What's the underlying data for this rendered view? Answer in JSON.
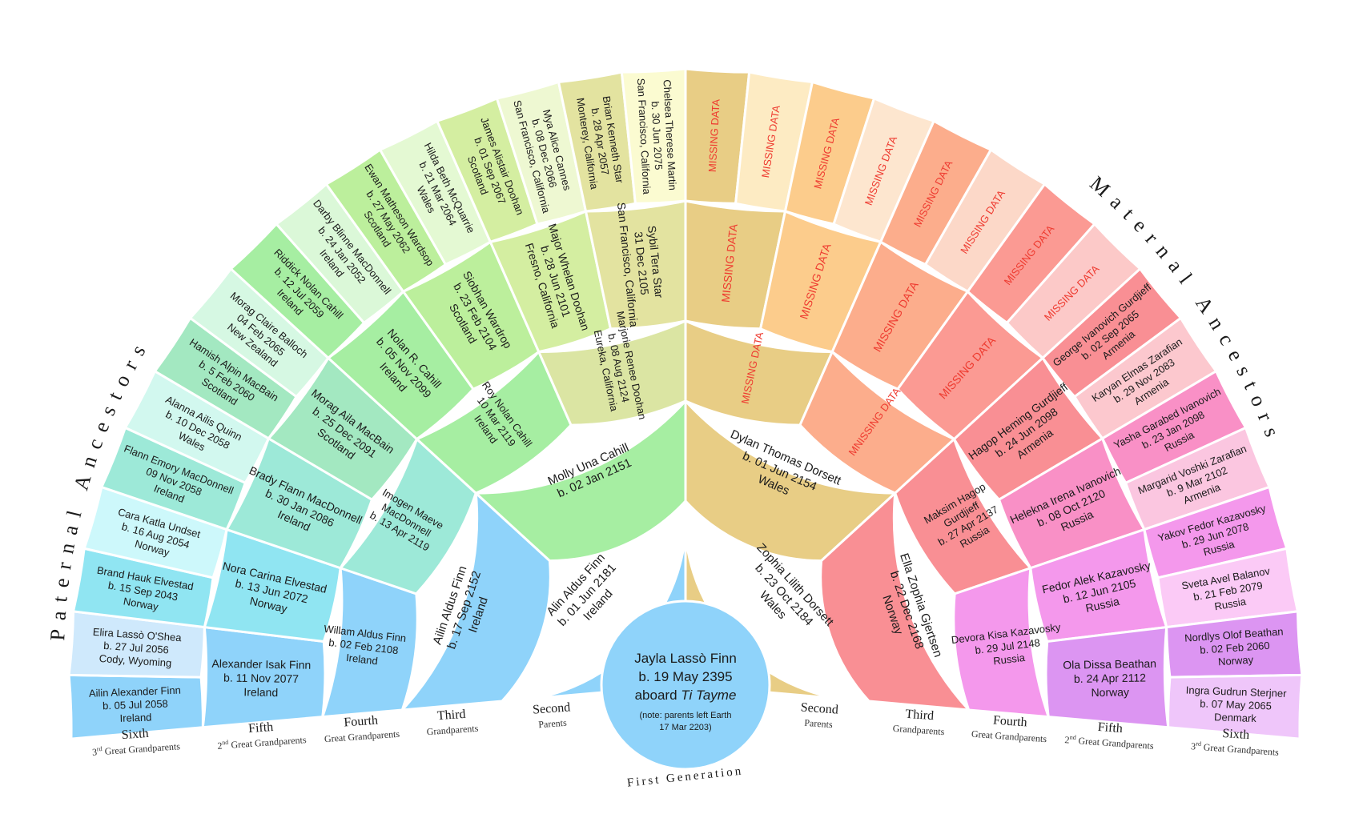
{
  "headings": {
    "paternal": "Paternal Ancestors",
    "maternal": "Maternal Ancestors",
    "center_caption": "First Generation"
  },
  "center": {
    "name": "Jayla Lassò Finn",
    "born": "b. 19 May 2395",
    "aboard_prefix": "aboard",
    "ship": "Ti Tayme",
    "note1": "(note: parents left Earth",
    "note2": "17 Mar 2203)"
  },
  "gen_labels": {
    "left": [
      {
        "title": "Second",
        "sub": "Parents"
      },
      {
        "title": "Third",
        "sub": "Grandparents"
      },
      {
        "title": "Fourth",
        "sub": "Great Grandparents"
      },
      {
        "title": "Fifth",
        "sup": "nd",
        "prefix": "2",
        "sub": "Great Grandparents"
      },
      {
        "title": "Sixth",
        "sup": "rd",
        "prefix": "3",
        "sub": "Great Grandparents"
      }
    ],
    "right": [
      {
        "title": "Second",
        "sub": "Parents"
      },
      {
        "title": "Third",
        "sub": "Grandparents"
      },
      {
        "title": "Fourth",
        "sub": "Great Grandparents"
      },
      {
        "title": "Fifth",
        "sup": "nd",
        "prefix": "2",
        "sub": "Great Grandparents"
      },
      {
        "title": "Sixth",
        "sup": "rd",
        "prefix": "3",
        "sub": "Great Grandparents"
      }
    ]
  },
  "rings": [
    {
      "level": 2,
      "people": [
        {
          "lines": [
            "Alin Aldus Finn",
            "b. 01 Jun 2181",
            "Ireland"
          ],
          "color": "#8fd3fa"
        },
        {
          "lines": [
            "Zophia Lilith Dorsett",
            "b. 23 Oct 2184",
            "Wales"
          ],
          "color": "#e8cd85"
        }
      ]
    },
    {
      "level": 3,
      "people": [
        {
          "lines": [
            "Ailin Aldus Finn",
            "b. 17 Sep 2152",
            "Ireland"
          ],
          "color": "#8fd3fa"
        },
        {
          "lines": [
            "Molly Una Cahill",
            "b. 02 Jan 2151"
          ],
          "color": "#a6eea2"
        },
        {
          "lines": [
            "Dylan Thomas Dorsett",
            "b. 01 Jun 2154",
            "Wales"
          ],
          "color": "#e8cd85"
        },
        {
          "lines": [
            "Ella Zophia Gjertsen",
            "b. 22 Dec 2168",
            "Norway"
          ],
          "color": "#f98f94"
        }
      ]
    },
    {
      "level": 4,
      "people": [
        {
          "lines": [
            "Willam Aldus Finn",
            "b. 02 Feb 2108",
            "Ireland"
          ],
          "color": "#8fd3fa"
        },
        {
          "lines": [
            "Imogen Maeve",
            "MacDonnell",
            "b. 13 Apr 2119"
          ],
          "color": "#9de9d8"
        },
        {
          "lines": [
            "Roy Nolan Cahill",
            "10 Mar 2119",
            "Ireland"
          ],
          "color": "#a6eea2"
        },
        {
          "lines": [
            "Marjorie Renee Doohan",
            "b. 08 Aug 2124",
            "Eureka, California"
          ],
          "color": "#dbe5a3"
        },
        {
          "lines": [
            "MISSING DATA"
          ],
          "color": "#e8cd85",
          "missing": true
        },
        {
          "lines": [
            "MNISSING DATA"
          ],
          "color": "#fcad8c",
          "missing": true
        },
        {
          "lines": [
            "Maksim Hagop",
            "Gurdjieff",
            "b. 27 Apr 2137",
            "Russia"
          ],
          "color": "#f98f94"
        },
        {
          "lines": [
            "Devora Kisa Kazavosky",
            "b. 29 Jul 2148",
            "Russia"
          ],
          "color": "#f498ec"
        }
      ]
    },
    {
      "level": 5,
      "people": [
        {
          "lines": [
            "Alexander Isak Finn",
            "b. 11 Nov 2077",
            "Ireland"
          ],
          "color": "#8fd3fa"
        },
        {
          "lines": [
            "Nora Carina Elvestad",
            "b. 13 Jun 2072",
            "Norway"
          ],
          "color": "#90e5f2"
        },
        {
          "lines": [
            "Brady Flann MacDonnell",
            "b. 30 Jan 2086",
            "Ireland"
          ],
          "color": "#9de9d8"
        },
        {
          "lines": [
            "Morag Aila MacBain",
            "b. 25 Dec 2091",
            "Scotland"
          ],
          "color": "#a3e8c1"
        },
        {
          "lines": [
            "Nolan R. Cahill",
            "b. 05 Nov 2099",
            "Ireland"
          ],
          "color": "#a6eea2"
        },
        {
          "lines": [
            "Siobhan Wardrop",
            "b. 23 Feb 2104",
            "Scotland"
          ],
          "color": "#bcef9c"
        },
        {
          "lines": [
            "Major Whelan Doohan",
            "b. 28 Jun 2101",
            "Fresno, California"
          ],
          "color": "#d4eea1"
        },
        {
          "lines": [
            "Sybil Tera Star",
            "31 Dec 2105",
            "San Francisco, California"
          ],
          "color": "#e3e3a0"
        },
        {
          "lines": [
            "MISSING DATA"
          ],
          "color": "#e8cd85",
          "missing": true
        },
        {
          "lines": [
            "MISSING DATA"
          ],
          "color": "#fccc8c",
          "missing": true
        },
        {
          "lines": [
            "MISSING DATA"
          ],
          "color": "#fcad8c",
          "missing": true
        },
        {
          "lines": [
            "MISSING DATA"
          ],
          "color": "#fb9a93",
          "missing": true
        },
        {
          "lines": [
            "Hagop Heming Gurdjieff",
            "b. 24 Jun 2098",
            "Armenia"
          ],
          "color": "#f98f94"
        },
        {
          "lines": [
            "Helekna Irena Ivanovich",
            "b. 08 Oct 2120",
            "Russia"
          ],
          "color": "#f990c6"
        },
        {
          "lines": [
            "Fedor Alek Kazavosky",
            "b. 12 Jun 2105",
            "Russia"
          ],
          "color": "#f498ec"
        },
        {
          "lines": [
            "Ola Dissa Beathan",
            "b. 24 Apr 2112",
            "Norway"
          ],
          "color": "#dc95f2"
        }
      ]
    },
    {
      "level": 6,
      "people": [
        {
          "lines": [
            "Ailin Alexander Finn",
            "b. 05 Jul 2058",
            "Ireland"
          ],
          "color": "#8fd3fa"
        },
        {
          "lines": [
            "Elira Lassò O'Shea",
            "b. 27 Jul 2056",
            "Cody, Wyoming"
          ],
          "color": "#cfe9fc"
        },
        {
          "lines": [
            "Brand Hauk Elvestad",
            "b. 15 Sep 2043",
            "Norway"
          ],
          "color": "#90e5f2"
        },
        {
          "lines": [
            "Cara Katla Undset",
            "b. 16 Aug 2054",
            "Norway"
          ],
          "color": "#cdf8fb"
        },
        {
          "lines": [
            "Flann Emory MacDonnell",
            "09 Nov 2058",
            "Ireland"
          ],
          "color": "#9de9d8"
        },
        {
          "lines": [
            "Alanna Ailis Quinn",
            "b. 10 Dec 2058",
            "Wales"
          ],
          "color": "#d2f8ef"
        },
        {
          "lines": [
            "Hamish Alpin MacBain",
            "b. 5 Feb 2060",
            "Scotland"
          ],
          "color": "#a3e8c1"
        },
        {
          "lines": [
            "Morag Claire Balloch",
            "04 Feb 2065",
            "New Zealand"
          ],
          "color": "#d6f8e3"
        },
        {
          "lines": [
            "Riddick Nolan Cahill",
            "b. 12 Jul 2059",
            "Ireland"
          ],
          "color": "#a6eea2"
        },
        {
          "lines": [
            "Darby Blinne MacDonnell",
            "b. 24 Jan 2052",
            "Ireland"
          ],
          "color": "#dbf8d8"
        },
        {
          "lines": [
            "Ewan Matheson Wardsop",
            "b. 27 May 2062",
            "Scotland"
          ],
          "color": "#bcef9c"
        },
        {
          "lines": [
            "Hilda Beth McQuarrie",
            "b. 21 Mar 2064",
            "Wales"
          ],
          "color": "#e4f9d3"
        },
        {
          "lines": [
            "James Alistair Doohan",
            "b. 01 Sep 2067",
            "Scotland"
          ],
          "color": "#d4eea1"
        },
        {
          "lines": [
            "Mya Alice Cannes",
            "b. 08 Dec 2066",
            "San Francisco, California"
          ],
          "color": "#eef8d2"
        },
        {
          "lines": [
            "Brian Kenneth Star",
            "b. 28 Apr 2057",
            "Monterey, California"
          ],
          "color": "#e3e3a0"
        },
        {
          "lines": [
            "Chelsea Therese Martin",
            "b. 30 Jun 2075",
            "San Francisco, California"
          ],
          "color": "#fbfbd1"
        },
        {
          "lines": [
            "MISSING DATA"
          ],
          "color": "#e8cd85",
          "missing": true
        },
        {
          "lines": [
            "MISSING DATA"
          ],
          "color": "#fdebc3",
          "missing": true
        },
        {
          "lines": [
            "MISSING DATA"
          ],
          "color": "#fccc8c",
          "missing": true
        },
        {
          "lines": [
            "MISSING DATA"
          ],
          "color": "#fde6cf",
          "missing": true
        },
        {
          "lines": [
            "MISSING DATA"
          ],
          "color": "#fcad8c",
          "missing": true
        },
        {
          "lines": [
            "MISSING DATA"
          ],
          "color": "#fcd8c8",
          "missing": true
        },
        {
          "lines": [
            "MISSING DATA"
          ],
          "color": "#fb9a93",
          "missing": true
        },
        {
          "lines": [
            "MISSING DATA"
          ],
          "color": "#fcc9c8",
          "missing": true
        },
        {
          "lines": [
            "George Ivanovich Gurdjieff",
            "b. 02 Sep 2065",
            "Armenia"
          ],
          "color": "#f98f94"
        },
        {
          "lines": [
            "Karyan Elmas Zarafian",
            "b. 29 Nov 2083",
            "Armenia"
          ],
          "color": "#fcc8ce"
        },
        {
          "lines": [
            "Yasha Garabed Ivanovich",
            "b. 23 Jan 2098",
            "Russia"
          ],
          "color": "#f990c6"
        },
        {
          "lines": [
            "Margarid Voshki Zarafian",
            "b. 9 Mar 2102",
            "Armenia"
          ],
          "color": "#fbc6e0"
        },
        {
          "lines": [
            "Yakov Fedor Kazavosky",
            "b. 29 Jun 2078",
            "Russia"
          ],
          "color": "#f498ec"
        },
        {
          "lines": [
            "Sveta Avel Balanov",
            "b. 21 Feb 2079",
            "Russia"
          ],
          "color": "#fbcaf6"
        },
        {
          "lines": [
            "Nordlys Olof Beathan",
            "b. 02 Feb 2060",
            "Norway"
          ],
          "color": "#dc95f2"
        },
        {
          "lines": [
            "Ingra Gudrun Sterjner",
            "b. 07 May 2065",
            "Denmark"
          ],
          "color": "#efc6fa"
        }
      ]
    }
  ]
}
